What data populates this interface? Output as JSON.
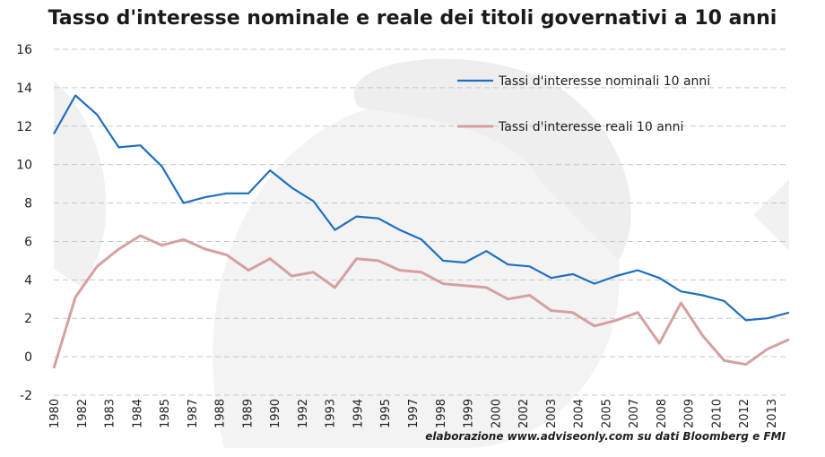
{
  "chart_data": {
    "type": "line",
    "title": "Tasso d'interesse nominale e reale dei titoli governativi a 10 anni",
    "xlabel": "",
    "ylabel": "",
    "ylim": [
      -2,
      16
    ],
    "yticks": [
      -2,
      0,
      2,
      4,
      6,
      8,
      10,
      12,
      14,
      16
    ],
    "grid": true,
    "legend_position": "top-right",
    "categories": [
      "1980",
      "1982",
      "1983",
      "1984",
      "1985",
      "1987",
      "1988",
      "1989",
      "1990",
      "1992",
      "1993",
      "1994",
      "1995",
      "1997",
      "1998",
      "1999",
      "2000",
      "2002",
      "2003",
      "2004",
      "2005",
      "2007",
      "2008",
      "2009",
      "2010",
      "2012",
      "2013"
    ],
    "x": [
      1980,
      1981,
      1982,
      1983,
      1984,
      1985,
      1986,
      1987,
      1988,
      1989,
      1990,
      1991,
      1992,
      1993,
      1994,
      1995,
      1996,
      1997,
      1998,
      1999,
      2000,
      2001,
      2002,
      2003,
      2004,
      2005,
      2006,
      2007,
      2008,
      2009,
      2010,
      2011,
      2012,
      2013,
      2014
    ],
    "series": [
      {
        "name": "Tassi  d'interesse nominali 10 anni",
        "color": "#1f6fbf",
        "values": [
          11.6,
          13.6,
          12.6,
          10.9,
          11.0,
          9.9,
          8.0,
          8.3,
          8.5,
          8.5,
          9.7,
          8.8,
          8.1,
          6.6,
          7.3,
          7.2,
          6.6,
          6.1,
          5.0,
          4.9,
          5.5,
          4.8,
          4.7,
          4.1,
          4.3,
          3.8,
          4.2,
          4.5,
          4.1,
          3.4,
          3.2,
          2.9,
          1.9,
          2.0,
          2.3
        ]
      },
      {
        "name": "Tassi d'interesse reali 10 anni",
        "color": "#d6a0a0",
        "values": [
          -0.6,
          3.1,
          4.7,
          5.6,
          6.3,
          5.8,
          6.1,
          5.6,
          5.3,
          4.5,
          5.1,
          4.2,
          4.4,
          3.6,
          5.1,
          5.0,
          4.5,
          4.4,
          3.8,
          3.7,
          3.6,
          3.0,
          3.2,
          2.4,
          2.3,
          1.6,
          1.9,
          2.3,
          0.7,
          2.8,
          1.1,
          -0.2,
          -0.4,
          0.4,
          0.9
        ]
      }
    ]
  },
  "source_note": "elaborazione www.adviseonly.com su dati Bloomberg e FMI",
  "watermark": "adviseonly-logo"
}
